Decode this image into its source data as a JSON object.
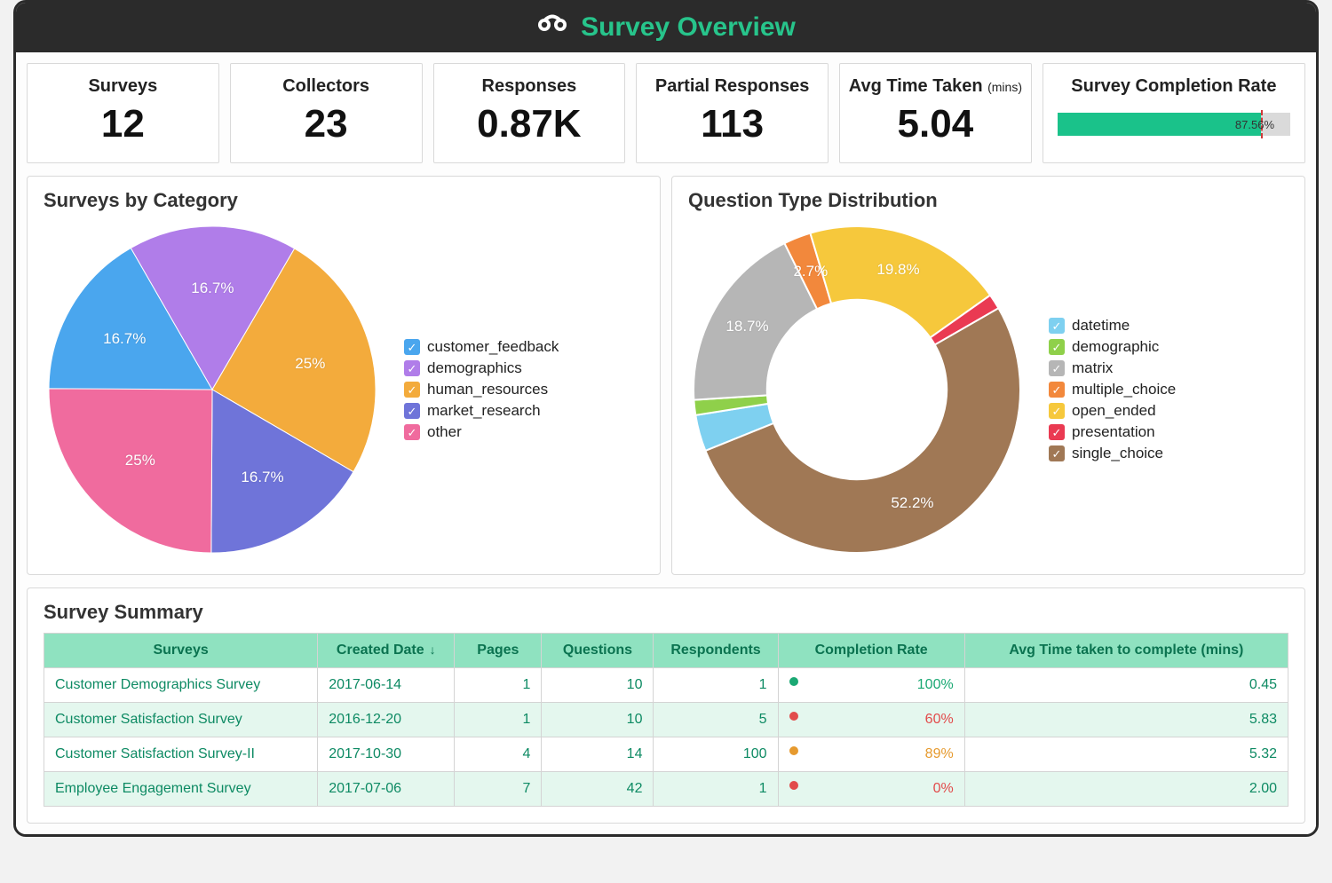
{
  "header": {
    "title": "Survey Overview",
    "accent_color": "#27c48b"
  },
  "kpis": {
    "surveys": {
      "label": "Surveys",
      "value": "12"
    },
    "collectors": {
      "label": "Collectors",
      "value": "23"
    },
    "responses": {
      "label": "Responses",
      "value": "0.87K"
    },
    "partial": {
      "label": "Partial Responses",
      "value": "113"
    },
    "avg_time": {
      "label": "Avg Time Taken",
      "unit": "(mins)",
      "value": "5.04"
    },
    "completion": {
      "label": "Survey Completion Rate",
      "pct": 87.56,
      "pct_text": "87.56%",
      "bar_color": "#1ac28a",
      "track_color": "#dadada",
      "marker_color": "#d03a3a",
      "marker_pct": 87.56
    }
  },
  "categories_chart": {
    "title": "Surveys by Category",
    "type": "pie",
    "slice_label_color": "#ffffff",
    "slice_label_fontsize": 17,
    "start_angle_deg": -90,
    "direction": "clockwise",
    "slices": [
      {
        "name": "customer_feedback",
        "pct": 16.7,
        "color": "#4aa6ee",
        "label": "16.7%"
      },
      {
        "name": "demographics",
        "pct": 16.7,
        "color": "#b07de9",
        "label": "16.7%"
      },
      {
        "name": "human_resources",
        "pct": 25.0,
        "color": "#f3ab3c",
        "label": "25%"
      },
      {
        "name": "market_research",
        "pct": 16.7,
        "color": "#6f74d9",
        "label": "16.7%"
      },
      {
        "name": "other",
        "pct": 25.0,
        "color": "#f06b9e",
        "label": "25%"
      }
    ],
    "legend": [
      {
        "name": "customer_feedback",
        "color": "#4aa6ee"
      },
      {
        "name": "demographics",
        "color": "#b07de9"
      },
      {
        "name": "human_resources",
        "color": "#f3ab3c"
      },
      {
        "name": "market_research",
        "color": "#6f74d9"
      },
      {
        "name": "other",
        "color": "#f06b9e"
      }
    ]
  },
  "qtype_chart": {
    "title": "Question Type Distribution",
    "type": "donut",
    "inner_radius_ratio": 0.55,
    "slice_label_color": "#ffffff",
    "slice_label_fontsize": 17,
    "start_angle_deg": -112,
    "direction": "clockwise",
    "slices": [
      {
        "name": "datetime",
        "pct": 3.6,
        "color": "#7ed0f0",
        "label": ""
      },
      {
        "name": "demographic",
        "pct": 1.5,
        "color": "#8fd04a",
        "label": ""
      },
      {
        "name": "matrix",
        "pct": 18.7,
        "color": "#b6b6b6",
        "label": "18.7%"
      },
      {
        "name": "multiple_choice",
        "pct": 2.7,
        "color": "#f2883c",
        "label": "2.7%"
      },
      {
        "name": "open_ended",
        "pct": 19.8,
        "color": "#f6c83c",
        "label": "19.8%"
      },
      {
        "name": "presentation",
        "pct": 1.5,
        "color": "#ea3a52",
        "label": ""
      },
      {
        "name": "single_choice",
        "pct": 52.2,
        "color": "#a07855",
        "label": "52.2%"
      }
    ],
    "legend": [
      {
        "name": "datetime",
        "color": "#7ed0f0"
      },
      {
        "name": "demographic",
        "color": "#8fd04a"
      },
      {
        "name": "matrix",
        "color": "#b6b6b6"
      },
      {
        "name": "multiple_choice",
        "color": "#f2883c"
      },
      {
        "name": "open_ended",
        "color": "#f6c83c"
      },
      {
        "name": "presentation",
        "color": "#ea3a52"
      },
      {
        "name": "single_choice",
        "color": "#a07855"
      }
    ]
  },
  "summary_table": {
    "title": "Survey Summary",
    "header_bg": "#8fe2c0",
    "header_fg": "#0b7350",
    "row_alt_bg": "#e4f7ee",
    "teal_text": "#0d8a63",
    "columns": [
      {
        "key": "name",
        "label": "Surveys",
        "width": "22%",
        "align": "left"
      },
      {
        "key": "created",
        "label": "Created Date",
        "width": "11%",
        "align": "left",
        "sort": "desc"
      },
      {
        "key": "pages",
        "label": "Pages",
        "width": "7%",
        "align": "right"
      },
      {
        "key": "questions",
        "label": "Questions",
        "width": "9%",
        "align": "right"
      },
      {
        "key": "resp",
        "label": "Respondents",
        "width": "10%",
        "align": "right"
      },
      {
        "key": "rate",
        "label": "Completion Rate",
        "width": "15%",
        "align": "right"
      },
      {
        "key": "avg",
        "label": "Avg Time taken to complete (mins)",
        "width": "26%",
        "align": "right"
      }
    ],
    "rate_colors": {
      "green": "#1aa873",
      "orange": "#e69a2e",
      "red": "#e24b4b"
    },
    "rows": [
      {
        "name": "Customer Demographics Survey",
        "created": "2017-06-14",
        "pages": 1,
        "questions": 10,
        "resp": 1,
        "rate_pct": 100,
        "rate_text": "100%",
        "rate_color": "green",
        "avg": "0.45"
      },
      {
        "name": "Customer Satisfaction Survey",
        "created": "2016-12-20",
        "pages": 1,
        "questions": 10,
        "resp": 5,
        "rate_pct": 60,
        "rate_text": "60%",
        "rate_color": "red",
        "avg": "5.83"
      },
      {
        "name": "Customer Satisfaction Survey-II",
        "created": "2017-10-30",
        "pages": 4,
        "questions": 14,
        "resp": 100,
        "rate_pct": 89,
        "rate_text": "89%",
        "rate_color": "orange",
        "avg": "5.32"
      },
      {
        "name": "Employee Engagement Survey",
        "created": "2017-07-06",
        "pages": 7,
        "questions": 42,
        "resp": 1,
        "rate_pct": 0,
        "rate_text": "0%",
        "rate_color": "red",
        "avg": "2.00"
      }
    ]
  }
}
